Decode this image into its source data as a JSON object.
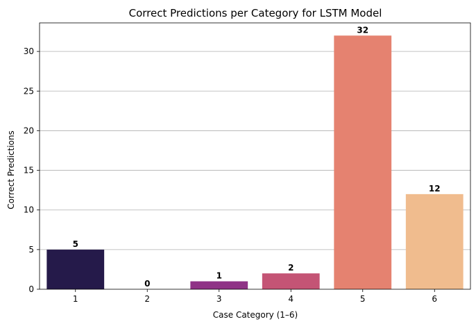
{
  "chart_data": {
    "type": "bar",
    "title": "Correct Predictions per Category for LSTM Model",
    "xlabel": "Case Category (1–6)",
    "ylabel": "Correct Predictions",
    "categories": [
      "1",
      "2",
      "3",
      "4",
      "5",
      "6"
    ],
    "values": [
      5,
      0,
      1,
      2,
      32,
      12
    ],
    "data_labels": [
      "5",
      "0",
      "1",
      "2",
      "32",
      "12"
    ],
    "colors": [
      "#251a4a",
      "#5b1f7a",
      "#8f3386",
      "#c45475",
      "#e58270",
      "#f0bc8e"
    ],
    "ylim": [
      0,
      33.6
    ],
    "yticks": [
      0,
      5,
      10,
      15,
      20,
      25,
      30
    ],
    "ytick_labels": [
      "0",
      "5",
      "10",
      "15",
      "20",
      "25",
      "30"
    ],
    "grid": "y",
    "legend": "none"
  }
}
